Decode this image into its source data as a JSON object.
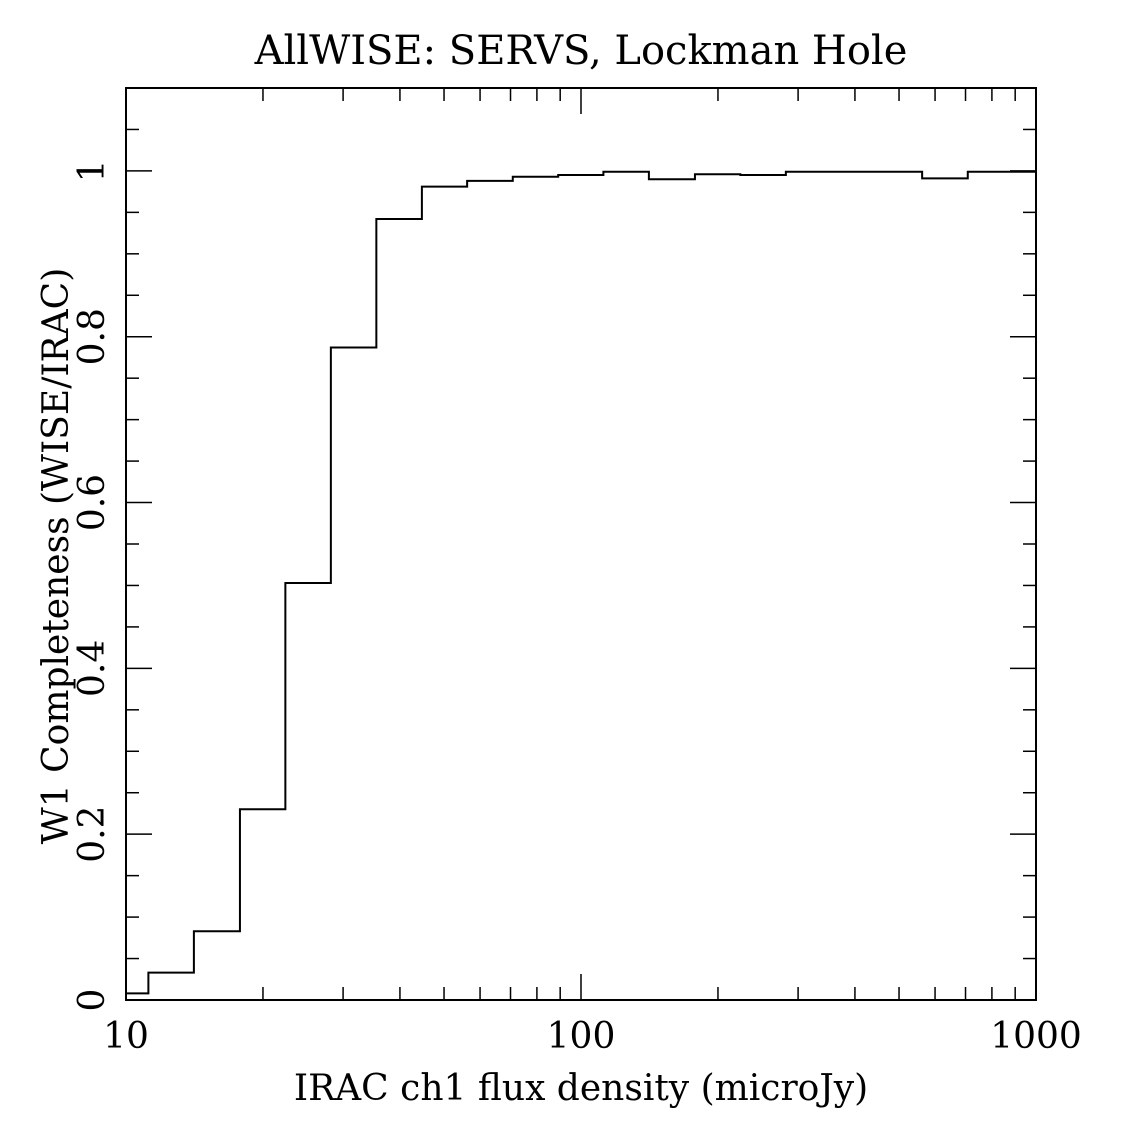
{
  "chart_data": {
    "type": "step",
    "title": "AllWISE: SERVS, Lockman Hole",
    "xlabel": "IRAC ch1 flux density (microJy)",
    "ylabel": "W1 Completeness (WISE/IRAC)",
    "xscale": "log",
    "xlim": [
      10,
      1000
    ],
    "ylim": [
      0,
      1.1
    ],
    "x_ticks": [
      10,
      100,
      1000
    ],
    "x_tick_labels": [
      "10",
      "100",
      "1000"
    ],
    "y_ticks": [
      0,
      0.2,
      0.4,
      0.6,
      0.8,
      1
    ],
    "y_tick_labels": [
      "0",
      "0.2",
      "0.4",
      "0.6",
      "0.8",
      "1"
    ],
    "bin_edges": [
      10,
      11.2,
      14.1,
      17.8,
      22.4,
      28.2,
      35.5,
      44.7,
      56.2,
      70.8,
      89.1,
      112,
      141,
      178,
      224,
      282,
      355,
      447,
      562,
      708,
      1000
    ],
    "values": [
      0.008,
      0.033,
      0.083,
      0.23,
      0.503,
      0.787,
      0.942,
      0.981,
      0.988,
      0.993,
      0.995,
      0.999,
      0.99,
      0.996,
      0.995,
      0.999,
      0.999,
      0.999,
      0.991,
      0.999
    ],
    "colors": {
      "line": "#000000",
      "background": "#ffffff"
    }
  }
}
